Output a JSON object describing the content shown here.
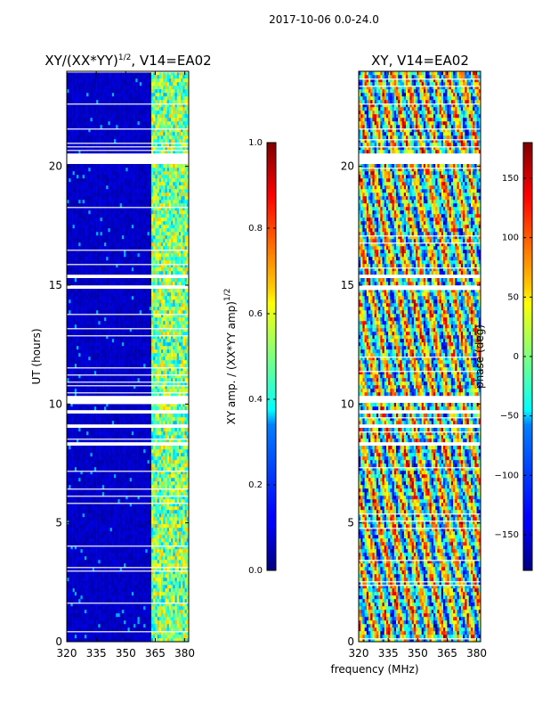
{
  "suptitle": "2017-10-06 0.0-24.0",
  "xlabel": "frequency (MHz)",
  "chart_data": [
    {
      "type": "heatmap",
      "title": "XY/(XX*YY)",
      "title_exp": "1/2",
      "title_tail": ", V14=EA02",
      "ylabel": "UT (hours)",
      "xlim": [
        320,
        382
      ],
      "ylim": [
        0,
        24
      ],
      "xticks": [
        "320",
        "335",
        "350",
        "365",
        "380"
      ],
      "xtick_values": [
        320,
        335,
        350,
        365,
        380
      ],
      "yticks": [
        "0",
        "5",
        "10",
        "15",
        "20"
      ],
      "ytick_values": [
        0,
        5,
        10,
        15,
        20
      ],
      "colorbar": {
        "label": "XY amp. / (XX*YY amp)",
        "label_exp": "1/2",
        "range": [
          0.0,
          1.0
        ],
        "ticks": [
          "0.0",
          "0.2",
          "0.4",
          "0.6",
          "0.8",
          "1.0"
        ],
        "tick_values": [
          0.0,
          0.2,
          0.4,
          0.6,
          0.8,
          1.0
        ]
      },
      "flagged_time_ranges": [
        [
          20.1,
          20.5
        ],
        [
          15.3,
          15.5
        ],
        [
          14.8,
          15.0
        ],
        [
          10.1,
          10.3
        ],
        [
          9.6,
          9.8
        ],
        [
          9.0,
          9.2
        ],
        [
          8.2,
          8.45
        ]
      ],
      "bright_band_mhz": [
        363,
        382
      ]
    },
    {
      "type": "heatmap",
      "title": "XY, V14=EA02",
      "xlim": [
        320,
        382
      ],
      "ylim": [
        0,
        24
      ],
      "xticks": [
        "320",
        "335",
        "350",
        "365",
        "380"
      ],
      "xtick_values": [
        320,
        335,
        350,
        365,
        380
      ],
      "yticks": [
        "0",
        "5",
        "10",
        "15",
        "20"
      ],
      "ytick_values": [
        0,
        5,
        10,
        15,
        20
      ],
      "colorbar": {
        "label": "phase (deg)",
        "range": [
          -180,
          180
        ],
        "ticks": [
          "150",
          "100",
          "50",
          "0",
          "−50",
          "−100",
          "−150"
        ],
        "tick_values": [
          150,
          100,
          50,
          0,
          -50,
          -100,
          -150
        ]
      },
      "flagged_time_ranges": [
        [
          20.1,
          20.5
        ],
        [
          15.3,
          15.5
        ],
        [
          14.8,
          15.0
        ],
        [
          10.1,
          10.3
        ],
        [
          9.6,
          9.8
        ],
        [
          9.0,
          9.2
        ],
        [
          8.2,
          8.45
        ]
      ]
    }
  ]
}
